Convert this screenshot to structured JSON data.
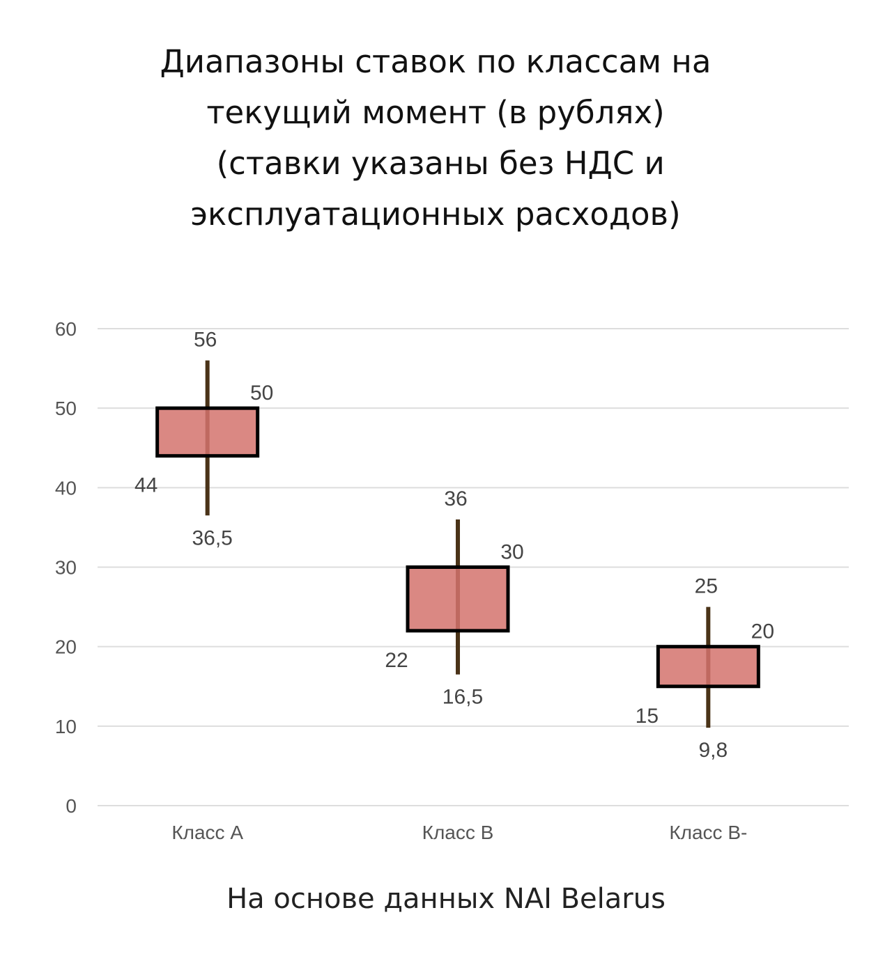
{
  "chart_data": {
    "type": "candlestick",
    "title_lines": [
      "Диапазоны ставок по классам на",
      "текущий момент (в рублях)",
      " (ставки указаны без НДС и",
      "эксплуатационных расходов)"
    ],
    "footer": "На основе данных NAI Belarus",
    "categories": [
      "Класс A",
      "Класс B",
      "Класс B-"
    ],
    "series": [
      {
        "category": "Класс A",
        "low": 36.5,
        "open": 44,
        "close": 50,
        "high": 56,
        "labels": {
          "low": "36,5",
          "open": "44",
          "close": "50",
          "high": "56"
        }
      },
      {
        "category": "Класс B",
        "low": 16.5,
        "open": 22,
        "close": 30,
        "high": 36,
        "labels": {
          "low": "16,5",
          "open": "22",
          "close": "30",
          "high": "36"
        }
      },
      {
        "category": "Класс B-",
        "low": 9.8,
        "open": 15,
        "close": 20,
        "high": 25,
        "labels": {
          "low": "9,8",
          "open": "15",
          "close": "20",
          "high": "25"
        }
      }
    ],
    "ylim": [
      0,
      60
    ],
    "yticks": [
      0,
      10,
      20,
      30,
      40,
      50,
      60
    ],
    "grid": true,
    "legend": "none",
    "colors": {
      "box": "#d4736d",
      "box_stroke": "#000000",
      "wick": "#4a3318",
      "grid": "#dddddd"
    }
  }
}
